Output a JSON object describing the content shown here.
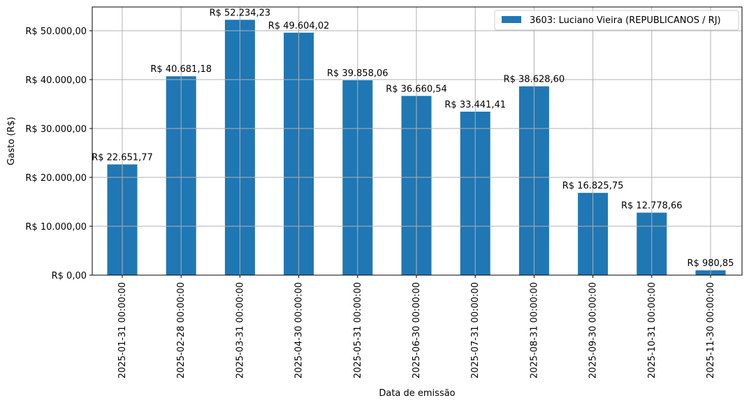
{
  "chart_data": {
    "type": "bar",
    "title": "",
    "xlabel": "Data de emissão",
    "ylabel": "Gasto (R$)",
    "ylim": [
      0,
      54846
    ],
    "grid": true,
    "legend_position": "upper right",
    "categories": [
      "2025-01-31 00:00:00",
      "2025-02-28 00:00:00",
      "2025-03-31 00:00:00",
      "2025-04-30 00:00:00",
      "2025-05-31 00:00:00",
      "2025-06-30 00:00:00",
      "2025-07-31 00:00:00",
      "2025-08-31 00:00:00",
      "2025-09-30 00:00:00",
      "2025-10-31 00:00:00",
      "2025-11-30 00:00:00"
    ],
    "series": [
      {
        "name": "3603: Luciano Vieira (REPUBLICANOS / RJ)",
        "color": "#1f77b4",
        "values": [
          22651.77,
          40681.18,
          52234.23,
          49604.02,
          39858.06,
          36660.54,
          33441.41,
          38628.6,
          16825.75,
          12778.66,
          980.85
        ],
        "labels": [
          "R$ 22.651,77",
          "R$ 40.681,18",
          "R$ 52.234,23",
          "R$ 49.604,02",
          "R$ 39.858,06",
          "R$ 36.660,54",
          "R$ 33.441,41",
          "R$ 38.628,60",
          "R$ 16.825,75",
          "R$ 12.778,66",
          "R$ 980,85"
        ]
      }
    ],
    "yticks": [
      0,
      10000,
      20000,
      30000,
      40000,
      50000
    ],
    "ytick_labels": [
      "R$ 0,00",
      "R$ 10.000,00",
      "R$ 20.000,00",
      "R$ 30.000,00",
      "R$ 40.000,00",
      "R$ 50.000,00"
    ]
  },
  "legend": {
    "label": "3603: Luciano Vieira (REPUBLICANOS / RJ)"
  },
  "axes": {
    "xlabel": "Data de emissão",
    "ylabel": "Gasto (R$)"
  },
  "style": {
    "bar_color": "#1f77b4",
    "grid_color": "#b0b0b0",
    "axis_color": "#000000"
  }
}
